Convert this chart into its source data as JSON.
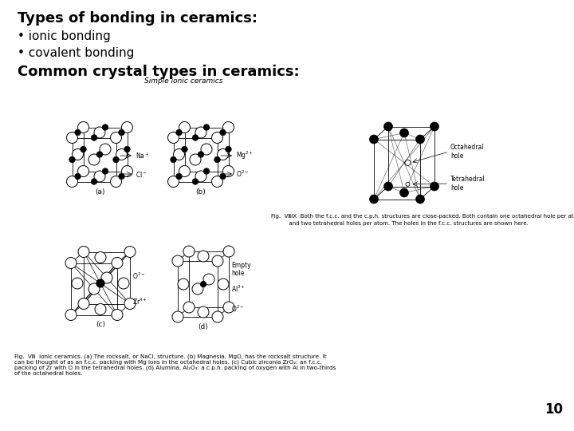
{
  "title": "Types of bonding in ceramics:",
  "bullets": [
    "ionic bonding",
    "covalent bonding"
  ],
  "subheading": "Common crystal types in ceramics:",
  "figure_title": "Simple ionic ceramics",
  "page_number": "10",
  "bg_color": "#ffffff",
  "text_color": "#000000",
  "title_fontsize": 13,
  "bullet_fontsize": 11,
  "subheading_fontsize": 13,
  "page_num_fontsize": 12,
  "fig_caption": "Fig.  Ⅷ  Ionic ceramics. (a) The rocksalt, or NaCl, structure. (b) Magnesia, MgO, has the rocksalt structure. It\ncan be thought of as an f.c.c. packing with Mg ions in the octahedral holes. (c) Cubic zirconia ZrO₂: an f.c.c.\npacking of Zr with O in the tetrahedral holes. (d) Alumina, Al₂O₃: a c.p.h. packing of oxygen with Al in two-thirds\nof the octahedral holes.",
  "mid_caption_line1": "Fig.  ⅧⅨ  Both the f.c.c. and the c.p.h. structures are close-packed. Both contain one octahedral hole per atom,",
  "mid_caption_line2": "          and two tetrahedral holes per atom. The holes in the f.c.c. structures are shown here."
}
